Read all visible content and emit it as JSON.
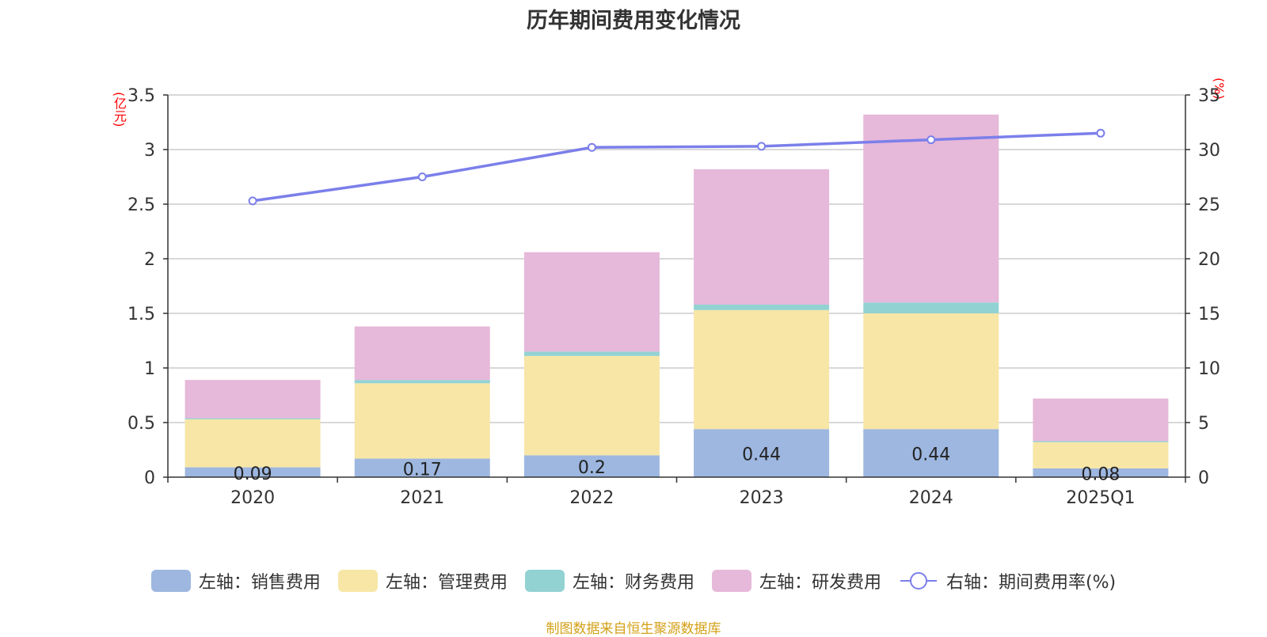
{
  "title": "历年期间费用变化情况",
  "left_unit": "(亿元)",
  "right_unit": "(%)",
  "source": "制图数据来自恒生聚源数据库",
  "colors": {
    "sales": "#9db7e0",
    "admin": "#f7e6a6",
    "finance": "#93d2d3",
    "rnd": "#e6b8d9",
    "rate": "#7b7fea",
    "grid": "#cccccc",
    "axis": "#333333"
  },
  "chart_data": {
    "type": "bar",
    "stacked": true,
    "title": "历年期间费用变化情况",
    "categories": [
      "2020",
      "2021",
      "2022",
      "2023",
      "2024",
      "2025Q1"
    ],
    "left_axis": {
      "label": "(亿元)",
      "ylim": [
        0,
        3.5
      ],
      "ticks": [
        "0",
        "0.5",
        "1",
        "1.5",
        "2",
        "2.5",
        "3",
        "3.5"
      ]
    },
    "right_axis": {
      "label": "(%)",
      "ylim": [
        0,
        35
      ],
      "ticks": [
        "0",
        "5",
        "10",
        "15",
        "20",
        "25",
        "30",
        "35"
      ]
    },
    "grid": true,
    "legend_position": "bottom",
    "series": [
      {
        "name": "左轴：销售费用",
        "key": "sales",
        "type": "bar",
        "axis": "left",
        "values": [
          0.09,
          0.17,
          0.2,
          0.44,
          0.44,
          0.08
        ],
        "labels": [
          "0.09",
          "0.17",
          "0.2",
          "0.44",
          "0.44",
          "0.08"
        ]
      },
      {
        "name": "左轴：管理费用",
        "key": "admin",
        "type": "bar",
        "axis": "left",
        "values": [
          0.44,
          0.69,
          0.91,
          1.09,
          1.06,
          0.24
        ]
      },
      {
        "name": "左轴：财务费用",
        "key": "finance",
        "type": "bar",
        "axis": "left",
        "values": [
          0.01,
          0.03,
          0.04,
          0.05,
          0.1,
          0.01
        ]
      },
      {
        "name": "左轴：研发费用",
        "key": "rnd",
        "type": "bar",
        "axis": "left",
        "values": [
          0.35,
          0.49,
          0.91,
          1.24,
          1.72,
          0.39
        ]
      },
      {
        "name": "右轴：期间费用率(%)",
        "key": "rate",
        "type": "line",
        "axis": "right",
        "values": [
          25.3,
          27.5,
          30.2,
          30.3,
          30.9,
          31.5
        ]
      }
    ]
  }
}
